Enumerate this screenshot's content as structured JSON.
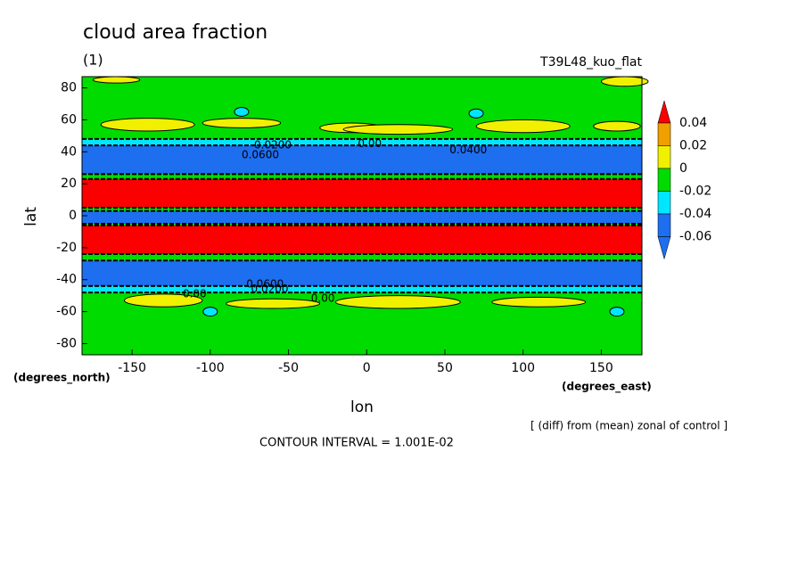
{
  "chart_data": {
    "type": "contour",
    "title": "cloud area fraction",
    "subtitle": "(1)",
    "run_label": "T39L48_kuo_flat",
    "x_label": "lon",
    "y_label": "lat",
    "x_unit": "(degrees_east)",
    "y_unit": "(degrees_north)",
    "note": "[ (diff) from (mean) zonal of control ]",
    "footer": "CONTOUR INTERVAL = 1.001E-02",
    "xlim": [
      -182,
      176
    ],
    "ylim": [
      -87,
      87
    ],
    "xticks": [
      -150,
      -100,
      -50,
      0,
      50,
      100,
      150
    ],
    "yticks": [
      -80,
      -60,
      -40,
      -20,
      0,
      20,
      40,
      60,
      80
    ],
    "background_color": "#00dc00",
    "bands": [
      {
        "from": 44,
        "to": 48,
        "color": "#00e6ff"
      },
      {
        "from": 26,
        "to": 44,
        "color": "#1e6ef0"
      },
      {
        "from": 5,
        "to": 23,
        "color": "#fa0000"
      },
      {
        "from": -5,
        "to": 3,
        "color": "#1e6ef0"
      },
      {
        "from": -24,
        "to": -6,
        "color": "#fa0000"
      },
      {
        "from": -44,
        "to": -28,
        "color": "#1e6ef0"
      },
      {
        "from": -48,
        "to": -44,
        "color": "#00e6ff"
      }
    ],
    "contour_labels": [
      {
        "text": "0.0200",
        "lon": -60,
        "lat": 44
      },
      {
        "text": "0.00",
        "lon": 2,
        "lat": 45
      },
      {
        "text": "0.0400",
        "lon": 65,
        "lat": 41
      },
      {
        "text": "0.0600",
        "lon": -68,
        "lat": 38
      },
      {
        "text": "0.00",
        "lon": -110,
        "lat": -49
      },
      {
        "text": "0.00",
        "lon": -28,
        "lat": -52
      },
      {
        "text": "0.0200",
        "lon": -62,
        "lat": -46
      },
      {
        "text": "0.0600",
        "lon": -65,
        "lat": -43
      }
    ],
    "colorbar": {
      "levels": [
        0.04,
        0.02,
        0,
        -0.02,
        -0.04,
        -0.06
      ],
      "colors": [
        "#fa0000",
        "#f0a000",
        "#f0f000",
        "#00dc00",
        "#00e6ff",
        "#1e6ef0",
        "#1e6ef0"
      ]
    }
  }
}
